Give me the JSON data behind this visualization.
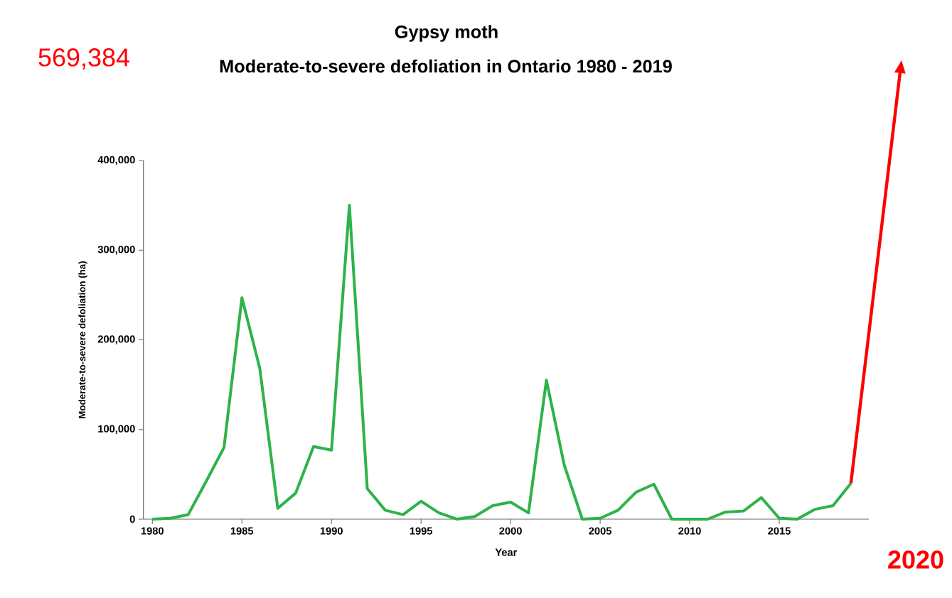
{
  "chart_data": {
    "type": "line",
    "title": "Gypsy moth",
    "subtitle": "Moderate-to-severe defoliation in Ontario 1980 - 2019",
    "xlabel": "Year",
    "ylabel": "Moderate-to-severe defoliation (ha)",
    "annotations": [
      "569,384",
      "2020"
    ],
    "x": [
      1980,
      1981,
      1982,
      1983,
      1984,
      1985,
      1986,
      1987,
      1988,
      1989,
      1990,
      1991,
      1992,
      1993,
      1994,
      1995,
      1996,
      1997,
      1998,
      1999,
      2000,
      2001,
      2002,
      2003,
      2004,
      2005,
      2006,
      2007,
      2008,
      2009,
      2010,
      2011,
      2012,
      2013,
      2014,
      2015,
      2016,
      2017,
      2018,
      2019
    ],
    "series": [
      {
        "color": "#2db34a",
        "values": [
          0,
          1000,
          5000,
          42000,
          80000,
          247000,
          168000,
          12000,
          29000,
          81000,
          77000,
          350000,
          34000,
          10000,
          5000,
          20000,
          7000,
          0,
          3000,
          15000,
          19000,
          7000,
          155000,
          60000,
          0,
          1000,
          10000,
          30000,
          39000,
          0,
          0,
          0,
          8000,
          9000,
          24000,
          1000,
          0,
          11000,
          15000,
          40000
        ]
      }
    ],
    "xlim": [
      1979.5,
      2020
    ],
    "ylim": [
      0,
      400000
    ],
    "xticks": [
      1980,
      1985,
      1990,
      1995,
      2000,
      2005,
      2010,
      2015
    ],
    "yticks": [
      0,
      {
        "value": 100000,
        "label": "100,000"
      },
      {
        "value": 200000,
        "label": "200,000"
      },
      {
        "value": 300000,
        "label": "300,000"
      },
      {
        "value": 400000,
        "label": "400,000"
      }
    ]
  }
}
